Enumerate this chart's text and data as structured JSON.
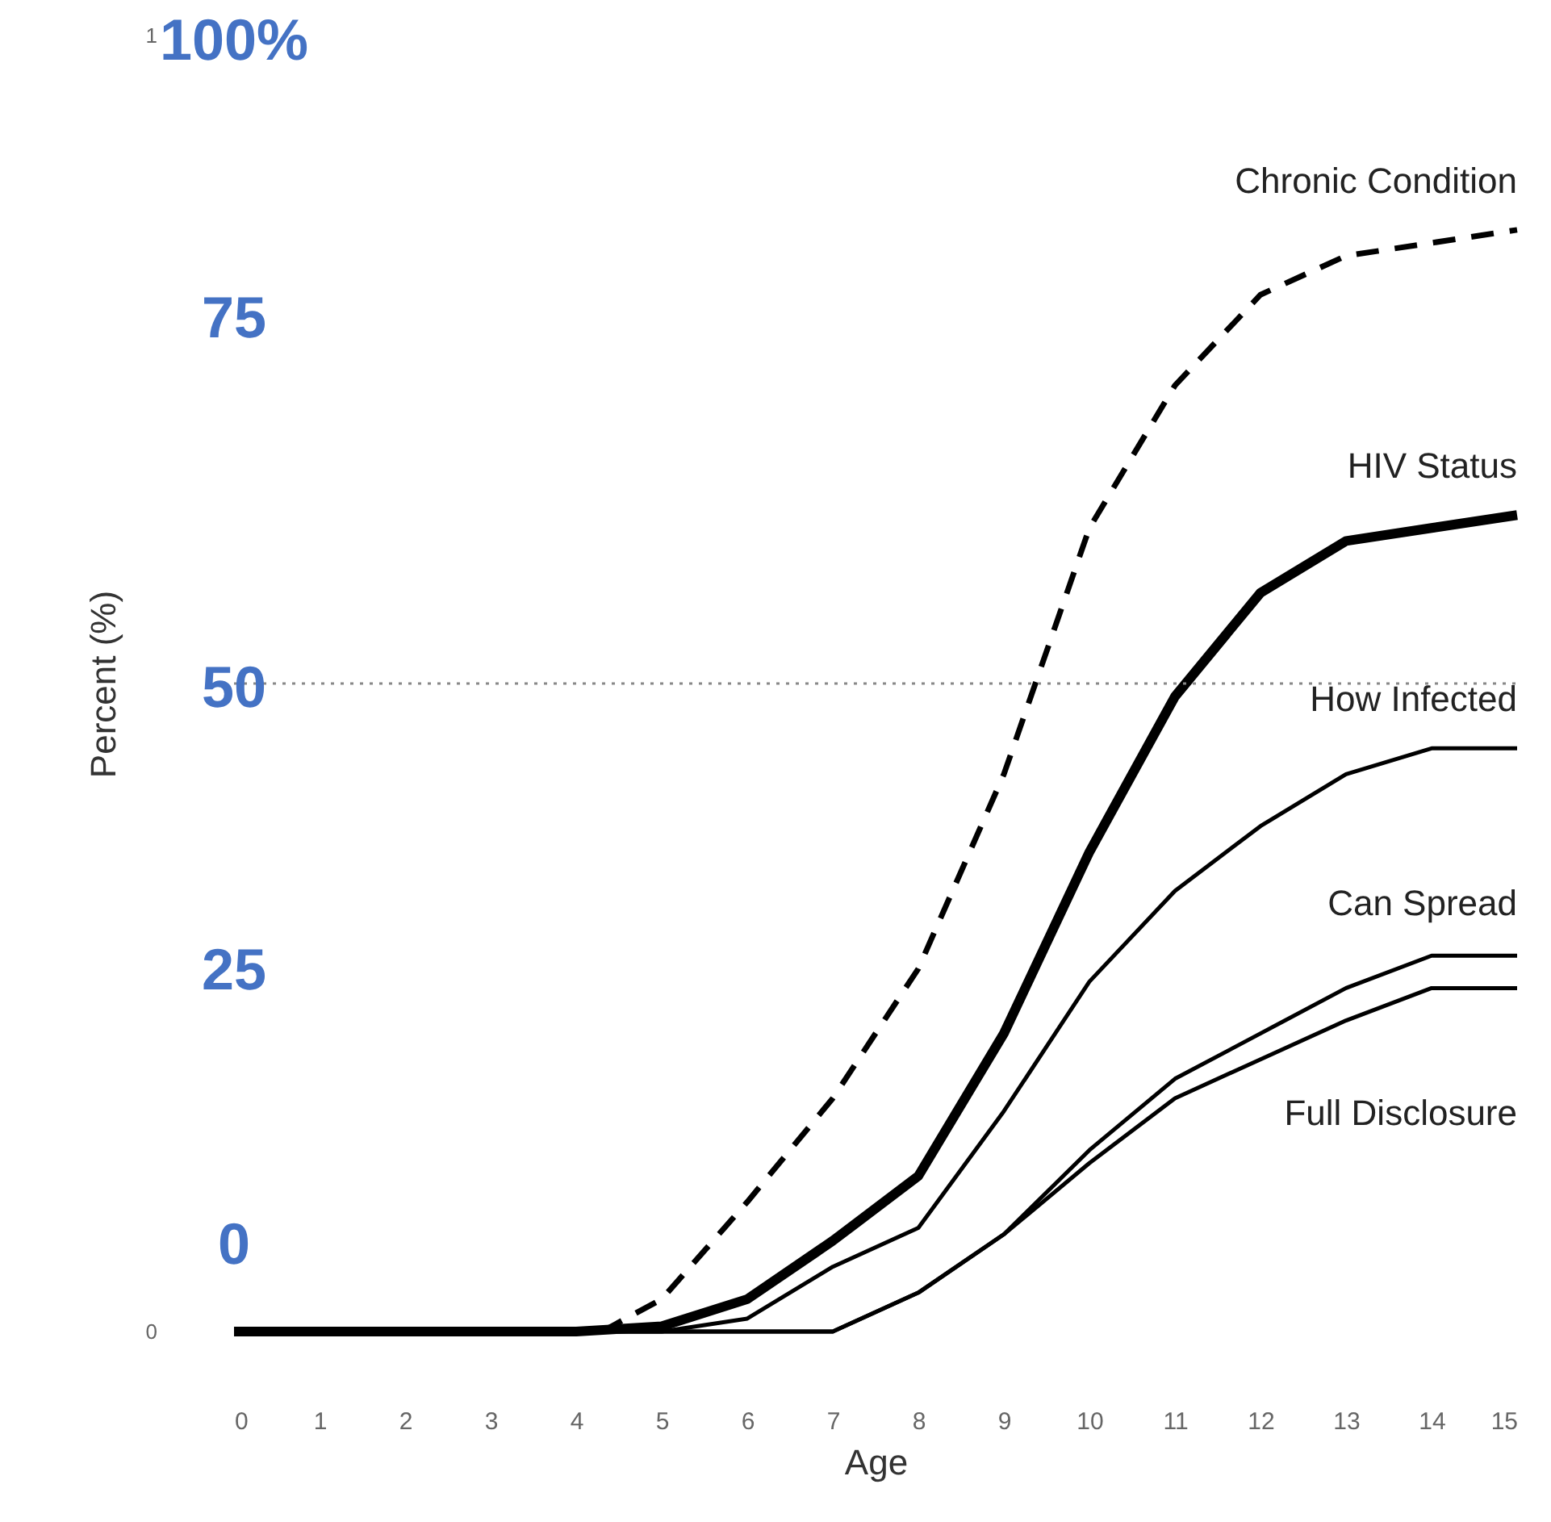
{
  "chart_data": {
    "type": "line",
    "xlabel": "Age",
    "ylabel": "Percent (%)",
    "xlim": [
      0,
      15
    ],
    "xticks": [
      0,
      1,
      2,
      3,
      4,
      5,
      6,
      7,
      8,
      9,
      10,
      11,
      12,
      13,
      14,
      15
    ],
    "ylim": [
      0,
      1
    ],
    "yticks": [
      0,
      1
    ],
    "x": [
      0,
      1,
      2,
      3,
      4,
      5,
      6,
      7,
      8,
      9,
      10,
      11,
      12,
      13,
      14,
      15
    ],
    "series": [
      {
        "name": "Chronic Condition",
        "color": "#000000",
        "line_style": "dashed",
        "x": [
          4.3,
          5,
          6,
          7,
          8,
          9,
          10,
          11,
          12,
          13,
          14,
          15
        ],
        "values": [
          0,
          0.025,
          0.1,
          0.18,
          0.28,
          0.43,
          0.62,
          0.73,
          0.8,
          0.83,
          0.84,
          0.85
        ]
      },
      {
        "name": "HIV Status",
        "color": "#000000",
        "values": [
          0,
          0,
          0,
          0,
          0,
          0.004,
          0.025,
          0.07,
          0.12,
          0.23,
          0.37,
          0.49,
          0.57,
          0.61,
          0.62,
          0.63
        ]
      },
      {
        "name": "How Infected",
        "color": "#000000",
        "values": [
          0,
          0,
          0,
          0,
          0,
          0,
          0.01,
          0.05,
          0.08,
          0.17,
          0.27,
          0.34,
          0.39,
          0.43,
          0.45,
          0.45
        ]
      },
      {
        "name": "Can Spread",
        "color": "#000000",
        "values": [
          0,
          0,
          0,
          0,
          0,
          0,
          0,
          0,
          0.03,
          0.075,
          0.14,
          0.195,
          0.23,
          0.265,
          0.29,
          0.29
        ]
      },
      {
        "name": "Full Disclosure",
        "color": "#000000",
        "values": [
          0,
          0,
          0,
          0,
          0,
          0,
          0,
          0,
          0.03,
          0.075,
          0.13,
          0.18,
          0.21,
          0.24,
          0.265,
          0.265
        ]
      }
    ],
    "ref_lines": [
      {
        "axis": "y",
        "value": 0.5,
        "color": "#888888",
        "line_style": "dotted"
      }
    ],
    "annotations": [
      "100%",
      "75",
      "50",
      "25",
      "0"
    ],
    "grid": false
  }
}
